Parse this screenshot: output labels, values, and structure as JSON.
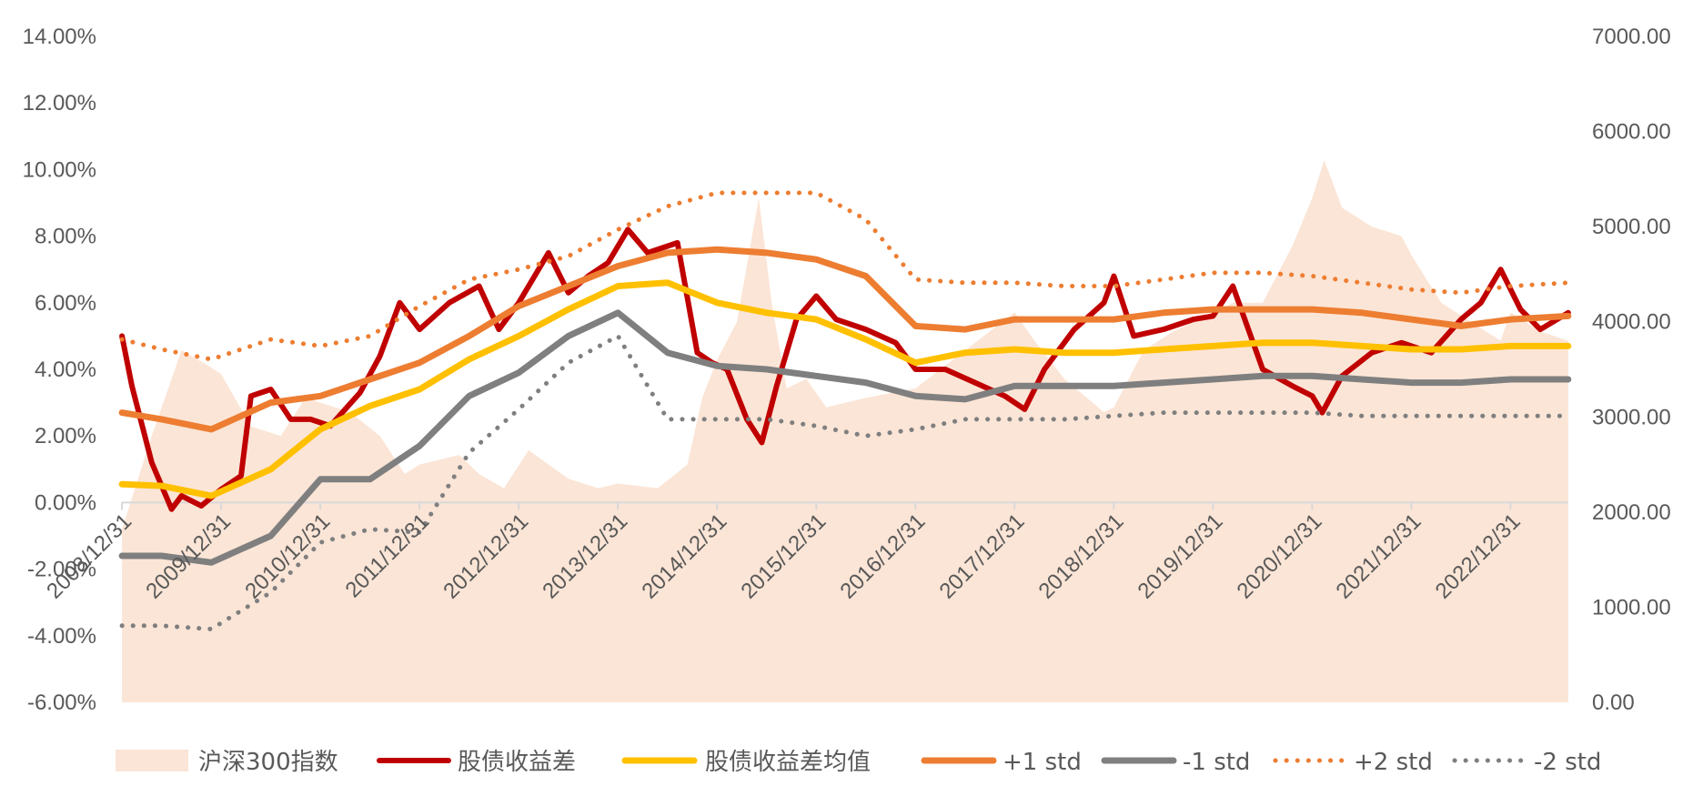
{
  "chart_data": {
    "type": "line",
    "x": [
      "2008/12/31",
      "2009/12/31",
      "2010/12/31",
      "2011/12/31",
      "2012/12/31",
      "2013/12/31",
      "2014/12/31",
      "2015/12/31",
      "2016/12/31",
      "2017/12/31",
      "2018/12/31",
      "2019/12/31",
      "2020/12/31",
      "2021/12/31",
      "2022/12/31"
    ],
    "x_range": [
      "2008/12/31",
      "2023/07/31"
    ],
    "ylim_left": [
      -0.06,
      0.14
    ],
    "ylim_right": [
      0,
      7000
    ],
    "yticks_left": [
      "14.00%",
      "12.00%",
      "10.00%",
      "8.00%",
      "6.00%",
      "4.00%",
      "2.00%",
      "0.00%",
      "-2.00%",
      "-4.00%",
      "-6.00%"
    ],
    "yticks_left_values": [
      0.14,
      0.12,
      0.1,
      0.08,
      0.06,
      0.04,
      0.02,
      0,
      -0.02,
      -0.04,
      -0.06
    ],
    "yticks_right": [
      "7000.00",
      "6000.00",
      "5000.00",
      "4000.00",
      "3000.00",
      "2000.00",
      "1000.00",
      "0.00"
    ],
    "yticks_right_values": [
      7000,
      6000,
      5000,
      4000,
      3000,
      2000,
      1000,
      0
    ],
    "legend_position": "bottom",
    "grid": false,
    "series": [
      {
        "name": "沪深300指数",
        "kind": "area",
        "axis": "right",
        "color": "#fbe5d6",
        "x": [
          2009.0,
          2009.3,
          2009.6,
          2009.85,
          2010.0,
          2010.3,
          2010.6,
          2010.85,
          2011.0,
          2011.3,
          2011.6,
          2011.85,
          2012.0,
          2012.4,
          2012.6,
          2012.85,
          2013.1,
          2013.5,
          2013.8,
          2014.0,
          2014.4,
          2014.7,
          2014.85,
          2015.0,
          2015.2,
          2015.42,
          2015.55,
          2015.7,
          2015.9,
          2016.1,
          2016.5,
          2017.0,
          2017.5,
          2018.0,
          2018.2,
          2018.5,
          2018.9,
          2019.0,
          2019.3,
          2019.6,
          2019.9,
          2020.2,
          2020.5,
          2020.8,
          2021.0,
          2021.12,
          2021.3,
          2021.6,
          2021.9,
          2022.0,
          2022.3,
          2022.6,
          2022.9,
          2023.0,
          2023.3,
          2023.58
        ],
        "y": [
          1820,
          2800,
          3700,
          3550,
          3450,
          2900,
          2800,
          3200,
          3150,
          3050,
          2800,
          2400,
          2500,
          2600,
          2400,
          2250,
          2650,
          2350,
          2250,
          2300,
          2250,
          2500,
          3200,
          3600,
          4000,
          5300,
          4200,
          3300,
          3400,
          3100,
          3200,
          3300,
          3700,
          4100,
          3800,
          3400,
          3050,
          3100,
          3700,
          3900,
          4050,
          4200,
          4200,
          4800,
          5300,
          5700,
          5200,
          5000,
          4900,
          4700,
          4200,
          4000,
          3800,
          4100,
          3900,
          3800
        ]
      },
      {
        "name": "股债收益差",
        "kind": "line",
        "axis": "left",
        "color": "#c00000",
        "x": [
          2009.0,
          2009.1,
          2009.3,
          2009.5,
          2009.6,
          2009.8,
          2010.0,
          2010.2,
          2010.3,
          2010.5,
          2010.7,
          2010.9,
          2011.1,
          2011.4,
          2011.6,
          2011.8,
          2012.0,
          2012.3,
          2012.6,
          2012.8,
          2013.0,
          2013.3,
          2013.5,
          2013.7,
          2013.9,
          2014.1,
          2014.3,
          2014.6,
          2014.8,
          2014.95,
          2015.1,
          2015.3,
          2015.45,
          2015.6,
          2015.8,
          2016.0,
          2016.2,
          2016.5,
          2016.8,
          2017.0,
          2017.3,
          2017.6,
          2017.9,
          2018.1,
          2018.3,
          2018.6,
          2018.9,
          2019.0,
          2019.2,
          2019.5,
          2019.8,
          2020.0,
          2020.2,
          2020.5,
          2020.8,
          2021.0,
          2021.1,
          2021.3,
          2021.6,
          2021.9,
          2022.2,
          2022.5,
          2022.7,
          2022.9,
          2023.1,
          2023.3,
          2023.58
        ],
        "y": [
          0.05,
          0.035,
          0.012,
          -0.002,
          0.002,
          -0.001,
          0.004,
          0.008,
          0.032,
          0.034,
          0.025,
          0.025,
          0.023,
          0.033,
          0.044,
          0.06,
          0.052,
          0.06,
          0.065,
          0.052,
          0.06,
          0.075,
          0.063,
          0.068,
          0.072,
          0.082,
          0.075,
          0.078,
          0.045,
          0.042,
          0.04,
          0.025,
          0.018,
          0.035,
          0.055,
          0.062,
          0.055,
          0.052,
          0.048,
          0.04,
          0.04,
          0.036,
          0.032,
          0.028,
          0.04,
          0.052,
          0.06,
          0.068,
          0.05,
          0.052,
          0.055,
          0.056,
          0.065,
          0.04,
          0.035,
          0.032,
          0.027,
          0.038,
          0.045,
          0.048,
          0.045,
          0.055,
          0.06,
          0.07,
          0.058,
          0.052,
          0.057
        ]
      },
      {
        "name": "股债收益差均值",
        "kind": "line",
        "axis": "left",
        "color": "#ffc000",
        "x": [
          2009.0,
          2009.4,
          2009.9,
          2010.5,
          2011.0,
          2011.5,
          2012.0,
          2012.5,
          2013.0,
          2013.5,
          2014.0,
          2014.5,
          2015.0,
          2015.5,
          2016.0,
          2016.5,
          2017.0,
          2017.5,
          2018.0,
          2018.5,
          2019.0,
          2019.5,
          2020.0,
          2020.5,
          2021.0,
          2021.5,
          2022.0,
          2022.5,
          2023.0,
          2023.58
        ],
        "y": [
          0.0055,
          0.005,
          0.002,
          0.01,
          0.022,
          0.029,
          0.034,
          0.043,
          0.05,
          0.058,
          0.065,
          0.066,
          0.06,
          0.057,
          0.055,
          0.049,
          0.042,
          0.045,
          0.046,
          0.045,
          0.045,
          0.046,
          0.047,
          0.048,
          0.048,
          0.047,
          0.046,
          0.046,
          0.047,
          0.047
        ]
      },
      {
        "name": "+1 std",
        "kind": "line",
        "axis": "left",
        "color": "#ed7d31",
        "x": [
          2009.0,
          2009.4,
          2009.9,
          2010.5,
          2011.0,
          2011.5,
          2012.0,
          2012.5,
          2013.0,
          2013.5,
          2014.0,
          2014.5,
          2015.0,
          2015.5,
          2016.0,
          2016.5,
          2017.0,
          2017.5,
          2018.0,
          2018.5,
          2019.0,
          2019.5,
          2020.0,
          2020.5,
          2021.0,
          2021.5,
          2022.0,
          2022.5,
          2023.0,
          2023.58
        ],
        "y": [
          0.027,
          0.025,
          0.022,
          0.03,
          0.032,
          0.037,
          0.042,
          0.05,
          0.059,
          0.065,
          0.071,
          0.075,
          0.076,
          0.075,
          0.073,
          0.068,
          0.053,
          0.052,
          0.055,
          0.055,
          0.055,
          0.057,
          0.058,
          0.058,
          0.058,
          0.057,
          0.055,
          0.053,
          0.055,
          0.056
        ]
      },
      {
        "name": "-1 std",
        "kind": "line",
        "axis": "left",
        "color": "#7f7f7f",
        "x": [
          2009.0,
          2009.4,
          2009.9,
          2010.5,
          2011.0,
          2011.5,
          2012.0,
          2012.5,
          2013.0,
          2013.5,
          2014.0,
          2014.5,
          2015.0,
          2015.5,
          2016.0,
          2016.5,
          2017.0,
          2017.5,
          2018.0,
          2018.5,
          2019.0,
          2019.5,
          2020.0,
          2020.5,
          2021.0,
          2021.5,
          2022.0,
          2022.5,
          2023.0,
          2023.58
        ],
        "y": [
          -0.016,
          -0.016,
          -0.018,
          -0.01,
          0.007,
          0.007,
          0.017,
          0.032,
          0.039,
          0.05,
          0.057,
          0.045,
          0.041,
          0.04,
          0.038,
          0.036,
          0.032,
          0.031,
          0.035,
          0.035,
          0.035,
          0.036,
          0.037,
          0.038,
          0.038,
          0.037,
          0.036,
          0.036,
          0.037,
          0.037
        ]
      },
      {
        "name": "+2 std",
        "kind": "line",
        "axis": "left",
        "color": "#ed7d31",
        "x": [
          2009.0,
          2009.4,
          2009.9,
          2010.5,
          2011.0,
          2011.5,
          2012.0,
          2012.5,
          2013.0,
          2013.5,
          2014.0,
          2014.5,
          2015.0,
          2015.5,
          2016.0,
          2016.5,
          2017.0,
          2017.5,
          2018.0,
          2018.5,
          2019.0,
          2019.5,
          2020.0,
          2020.5,
          2021.0,
          2021.5,
          2022.0,
          2022.5,
          2023.0,
          2023.58
        ],
        "y": [
          0.049,
          0.046,
          0.043,
          0.049,
          0.047,
          0.05,
          0.059,
          0.067,
          0.07,
          0.074,
          0.082,
          0.089,
          0.093,
          0.093,
          0.093,
          0.085,
          0.067,
          0.066,
          0.066,
          0.065,
          0.065,
          0.067,
          0.069,
          0.069,
          0.068,
          0.066,
          0.064,
          0.063,
          0.065,
          0.066
        ]
      },
      {
        "name": "-2 std",
        "kind": "line",
        "axis": "left",
        "color": "#7f7f7f",
        "x": [
          2009.0,
          2009.4,
          2009.9,
          2010.5,
          2011.0,
          2011.5,
          2012.0,
          2012.5,
          2013.0,
          2013.5,
          2014.0,
          2014.5,
          2015.0,
          2015.5,
          2016.0,
          2016.5,
          2017.0,
          2017.5,
          2018.0,
          2018.5,
          2019.0,
          2019.5,
          2020.0,
          2020.5,
          2021.0,
          2021.5,
          2022.0,
          2022.5,
          2023.0,
          2023.58
        ],
        "y": [
          -0.037,
          -0.037,
          -0.038,
          -0.027,
          -0.012,
          -0.008,
          -0.009,
          0.015,
          0.028,
          0.042,
          0.05,
          0.025,
          0.025,
          0.025,
          0.023,
          0.02,
          0.022,
          0.025,
          0.025,
          0.025,
          0.026,
          0.027,
          0.027,
          0.027,
          0.027,
          0.026,
          0.026,
          0.026,
          0.026,
          0.026
        ]
      }
    ]
  }
}
